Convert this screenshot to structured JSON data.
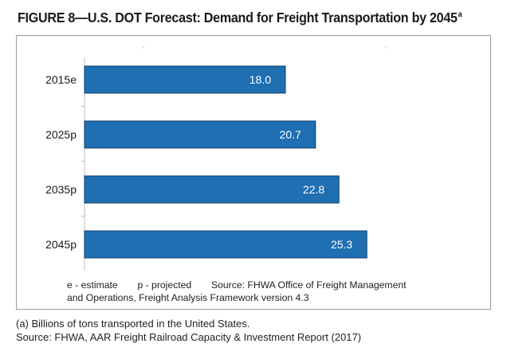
{
  "title": {
    "main": "FIGURE 8—U.S. DOT Forecast: Demand for Freight Transportation by 2045",
    "superscript": "a"
  },
  "chart_data": {
    "type": "bar",
    "orientation": "horizontal",
    "categories": [
      "2015e",
      "2025p",
      "2035p",
      "2045p"
    ],
    "values": [
      18.0,
      20.7,
      22.8,
      25.3
    ],
    "value_labels": [
      "18.0",
      "20.7",
      "22.8",
      "25.3"
    ],
    "xlim": [
      0,
      35
    ],
    "grid": false,
    "bar_color": "#1f6fb2",
    "label_color": "#ffffff",
    "title": "",
    "xlabel": "",
    "ylabel": ""
  },
  "notes": {
    "legend_estimate": "e - estimate",
    "legend_projected": "p - projected",
    "source_line1": "Source:  FHWA Office of Freight Management",
    "source_line2": "and Operations, Freight Analysis Framework version 4.3"
  },
  "footnote": {
    "line1": "(a) Billions of tons transported in the United States.",
    "line2": "Source: FHWA, AAR Freight Railroad Capacity & Investment Report (2017)"
  }
}
